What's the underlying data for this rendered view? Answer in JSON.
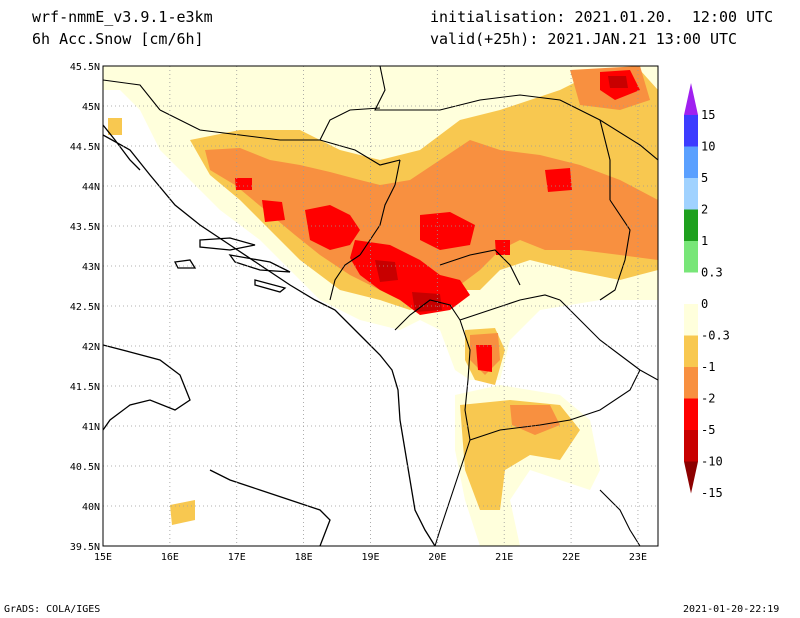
{
  "header": {
    "model": "wrf-nmmE_v3.9.1-e3km",
    "field": "6h Acc.Snow [cm/6h]",
    "init": "initialisation: 2021.01.20.  12:00 UTC",
    "valid": "valid(+25h): 2021.JAN.21 13:00 UTC"
  },
  "footer": {
    "left": "GrADS: COLA/IGES",
    "right": "2021-01-20-22:19"
  },
  "map": {
    "lon_range": [
      15,
      23.3
    ],
    "lat_range": [
      39.5,
      45.5
    ],
    "lon_labels": [
      "15E",
      "16E",
      "17E",
      "18E",
      "19E",
      "20E",
      "21E",
      "22E",
      "23E"
    ],
    "lat_labels": [
      "45.5N",
      "45N",
      "44.5N",
      "44N",
      "43.5N",
      "43N",
      "42.5N",
      "42N",
      "41.5N",
      "41N",
      "40.5N",
      "40N",
      "39.5N"
    ],
    "grid": true
  },
  "colorbar": {
    "labels": [
      "15",
      "10",
      "5",
      "2",
      "1",
      "0.3",
      "0",
      "-0.3",
      "-1",
      "-2",
      "-5",
      "-10",
      "-15"
    ],
    "colors": [
      "#a020f0",
      "#3c3cff",
      "#5aa0ff",
      "#a0d2ff",
      "#1ea01e",
      "#78e678",
      "#ffffff",
      "#ffffdc",
      "#f8c850",
      "#f89040",
      "#ff0000",
      "#c80000",
      "#8c0000"
    ]
  }
}
